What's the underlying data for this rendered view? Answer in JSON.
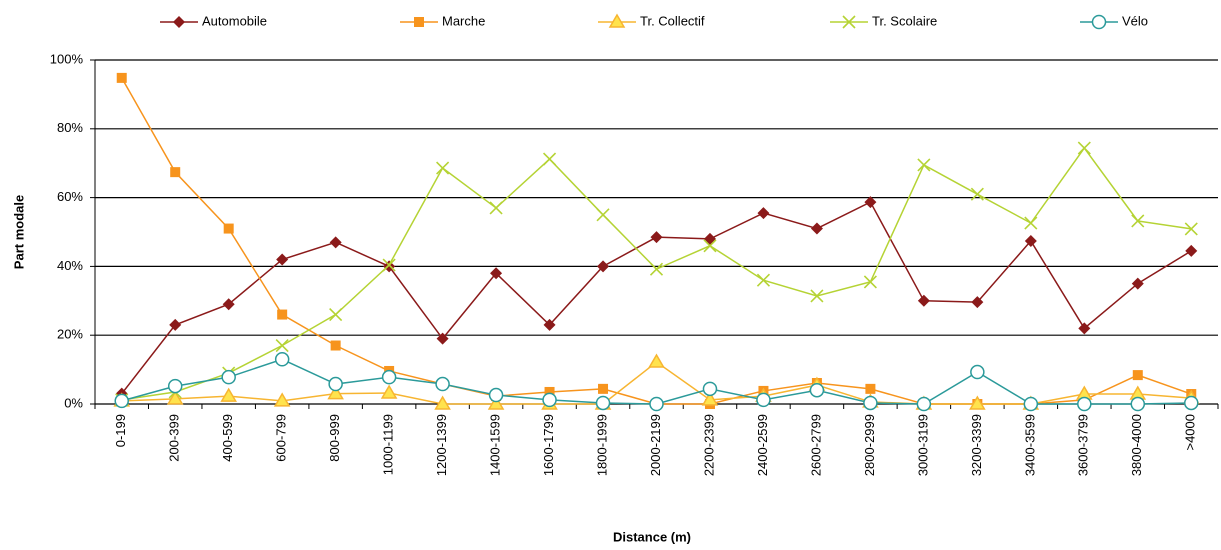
{
  "chart_data": {
    "type": "line",
    "xlabel": "Distance (m)",
    "ylabel": "Part modale",
    "categories": [
      "0-199",
      "200-399",
      "400-599",
      "600-799",
      "800-999",
      "1000-1199",
      "1200-1399",
      "1400-1599",
      "1600-1799",
      "1800-1999",
      "2000-2199",
      "2200-2399",
      "2400-2599",
      "2600-2799",
      "2800-2999",
      "3000-3199",
      "3200-3399",
      "3400-3599",
      "3600-3799",
      "3800-4000",
      ">4000"
    ],
    "series": [
      {
        "name": "Automobile",
        "color": "#8b1a1a",
        "marker": "diamond",
        "values": [
          3,
          23,
          29,
          42,
          47,
          40,
          19,
          38,
          23,
          40,
          48.5,
          48,
          55.5,
          51,
          58.7,
          30,
          29.6,
          47.4,
          22,
          35,
          44.5
        ]
      },
      {
        "name": "Marche",
        "color": "#f7941d",
        "marker": "square",
        "values": [
          94.8,
          67.4,
          51,
          26,
          17,
          9.6,
          5.8,
          2.3,
          3.5,
          4.4,
          0,
          0,
          3.8,
          6.1,
          4.4,
          0,
          0,
          0,
          1.2,
          8.4,
          2.9
        ]
      },
      {
        "name": "Tr. Collectif",
        "color": "#f7b531",
        "marker": "triangle",
        "values": [
          0.9,
          1.5,
          2.3,
          0.9,
          3,
          3.2,
          0,
          0,
          0,
          0,
          12.2,
          1.2,
          2.3,
          5.5,
          0.6,
          0,
          0,
          0,
          2.9,
          2.9,
          1.7
        ]
      },
      {
        "name": "Tr. Scolaire",
        "color": "#b5d334",
        "marker": "x",
        "values": [
          1.2,
          3.5,
          9,
          17,
          26,
          40.4,
          68.6,
          57,
          71.2,
          55,
          39.2,
          46,
          36,
          31.4,
          35.5,
          69.5,
          61,
          52.6,
          74.4,
          53.2,
          50.9
        ]
      },
      {
        "name": "Vélo",
        "color": "#2b9a9a",
        "marker": "circle",
        "values": [
          0.9,
          5.2,
          7.8,
          13,
          5.8,
          7.8,
          5.8,
          2.6,
          1.2,
          0.3,
          0,
          4.4,
          1.2,
          4,
          0.3,
          0,
          9.3,
          0,
          0,
          0,
          0.3
        ]
      }
    ],
    "ylim": [
      0,
      100
    ],
    "yticks": [
      {
        "value": 0,
        "label": "0%"
      },
      {
        "value": 20,
        "label": "20%"
      },
      {
        "value": 40,
        "label": "40%"
      },
      {
        "value": 60,
        "label": "60%"
      },
      {
        "value": 80,
        "label": "80%"
      },
      {
        "value": 100,
        "label": "100%"
      }
    ],
    "grid": true,
    "legend": "top"
  }
}
